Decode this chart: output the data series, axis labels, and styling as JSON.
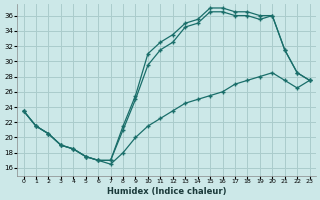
{
  "xlabel": "Humidex (Indice chaleur)",
  "bg_color": "#cce8e8",
  "grid_color": "#aacccc",
  "line_color": "#1a6e6a",
  "xlim": [
    -0.5,
    23.5
  ],
  "ylim": [
    15.0,
    37.5
  ],
  "yticks": [
    16,
    18,
    20,
    22,
    24,
    26,
    28,
    30,
    32,
    34,
    36
  ],
  "xticks": [
    0,
    1,
    2,
    3,
    4,
    5,
    6,
    7,
    8,
    9,
    10,
    11,
    12,
    13,
    14,
    15,
    16,
    17,
    18,
    19,
    20,
    21,
    22,
    23
  ],
  "line1_x": [
    0,
    1,
    2,
    3,
    4,
    5,
    6,
    7,
    8,
    9,
    10,
    11,
    12,
    13,
    14,
    15,
    16,
    17,
    18,
    19,
    20,
    21,
    22,
    23
  ],
  "line1_y": [
    23.5,
    21.5,
    20.5,
    19.0,
    18.5,
    17.5,
    17.0,
    17.0,
    21.5,
    25.5,
    31.0,
    32.5,
    33.5,
    35.0,
    35.5,
    37.0,
    37.0,
    36.5,
    36.5,
    36.0,
    36.0,
    31.5,
    28.5,
    27.5
  ],
  "line2_x": [
    0,
    1,
    2,
    3,
    4,
    5,
    6,
    7,
    8,
    9,
    10,
    11,
    12,
    13,
    14,
    15,
    16,
    17,
    18,
    19,
    20,
    21,
    22,
    23
  ],
  "line2_y": [
    23.5,
    21.5,
    20.5,
    19.0,
    18.5,
    17.5,
    17.0,
    17.0,
    21.0,
    25.0,
    29.5,
    31.5,
    32.5,
    34.5,
    35.0,
    36.5,
    36.5,
    36.0,
    36.0,
    35.5,
    36.0,
    31.5,
    28.5,
    27.5
  ],
  "line3_x": [
    0,
    1,
    2,
    3,
    4,
    5,
    6,
    7,
    8,
    9,
    10,
    11,
    12,
    13,
    14,
    15,
    16,
    17,
    18,
    19,
    20,
    21,
    22,
    23
  ],
  "line3_y": [
    23.5,
    21.5,
    20.5,
    19.0,
    18.5,
    17.5,
    17.0,
    16.5,
    18.0,
    20.0,
    21.5,
    22.5,
    23.5,
    24.5,
    25.0,
    25.5,
    26.0,
    27.0,
    27.5,
    28.0,
    28.5,
    27.5,
    26.5,
    27.5
  ]
}
